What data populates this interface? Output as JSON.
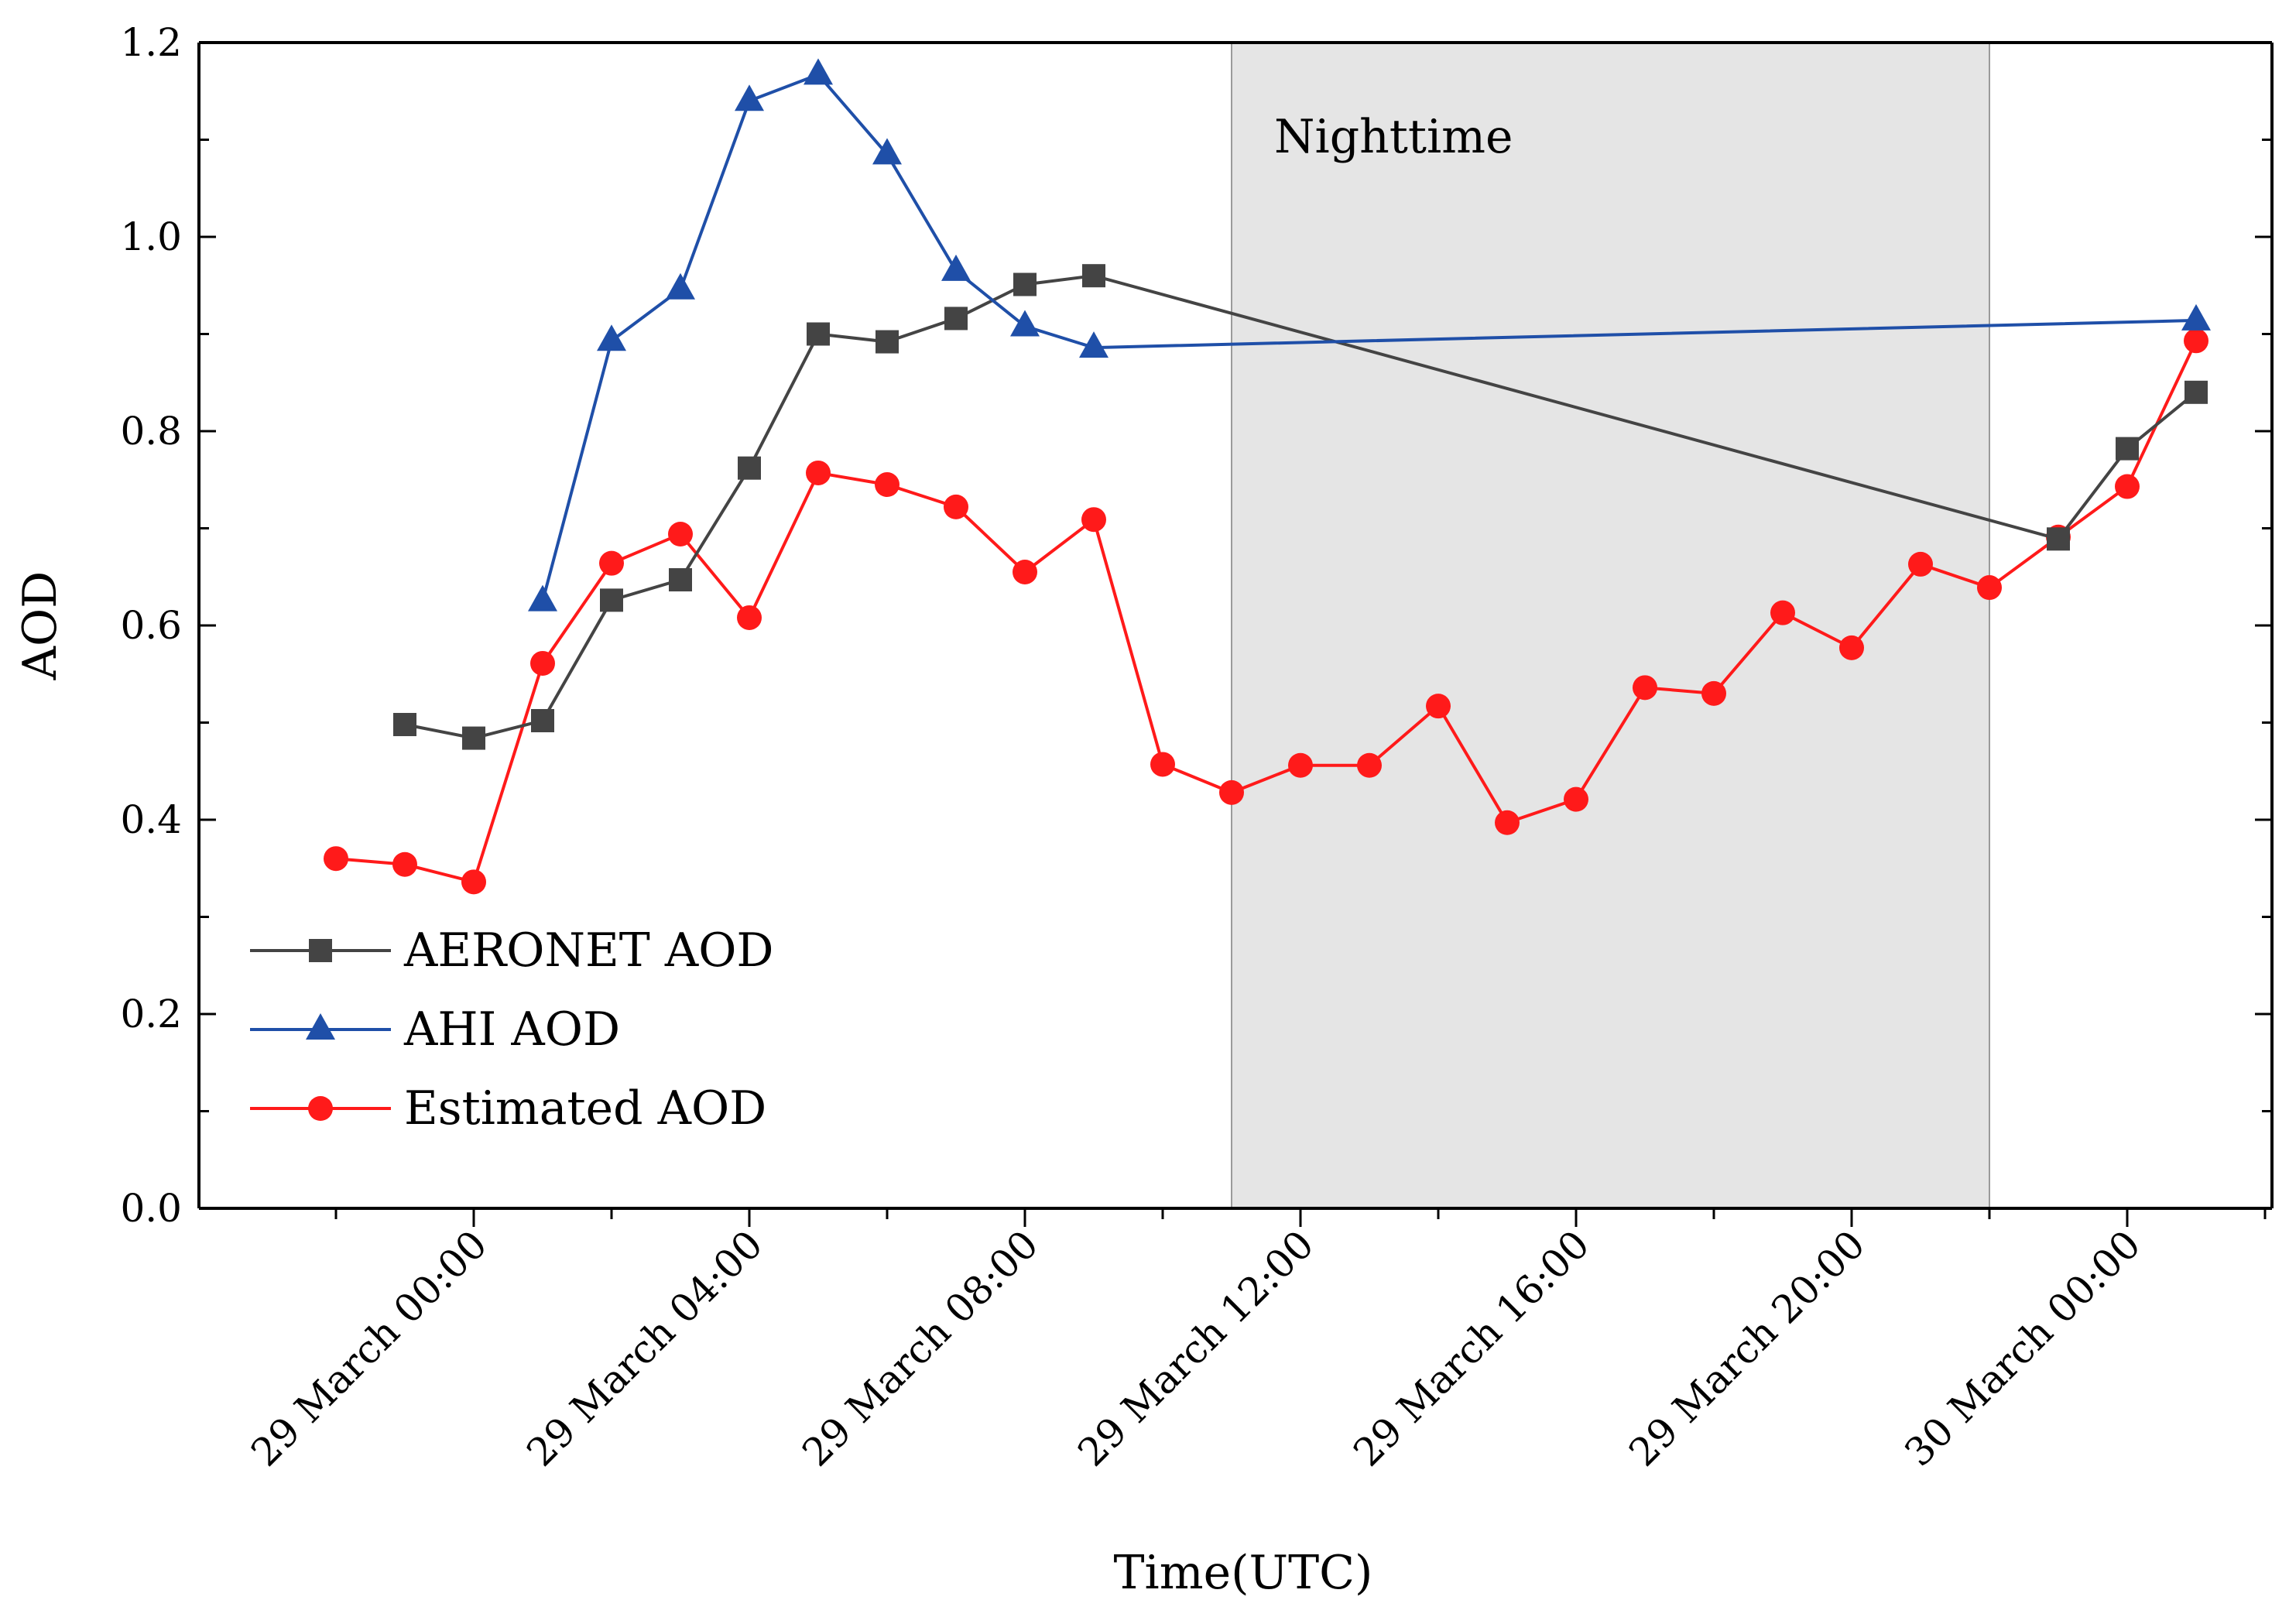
{
  "chart_data": {
    "type": "line",
    "title": "",
    "xlabel": "Time(UTC)",
    "ylabel": "AOD",
    "ylim": [
      0,
      1.2
    ],
    "xlim_hours": [
      -5,
      25
    ],
    "yticks": [
      "0.0",
      "0.2",
      "0.4",
      "0.6",
      "0.8",
      "1.0",
      "1.2"
    ],
    "xticks": [
      {
        "hour": 0,
        "label": "29 March 00:00"
      },
      {
        "hour": 4,
        "label": "29 March 04:00"
      },
      {
        "hour": 8,
        "label": "29 March 08:00"
      },
      {
        "hour": 12,
        "label": "29 March 12:00"
      },
      {
        "hour": 16,
        "label": "29 March 16:00"
      },
      {
        "hour": 20,
        "label": "29 March 20:00"
      },
      {
        "hour": 24,
        "label": "30 March 00:00"
      }
    ],
    "shaded_region": {
      "label": "Nighttime",
      "from_hour": 11,
      "to_hour": 22,
      "color": "#e5e5e5"
    },
    "legend_position": "lower-left",
    "series": [
      {
        "name": "AERONET AOD",
        "marker": "square",
        "color": "#444444",
        "points": [
          [
            -1,
            0.498
          ],
          [
            0,
            0.484
          ],
          [
            1,
            0.502
          ],
          [
            2,
            0.626
          ],
          [
            3,
            0.647
          ],
          [
            4,
            0.762
          ],
          [
            5,
            0.9
          ],
          [
            6,
            0.892
          ],
          [
            7,
            0.916
          ],
          [
            8,
            0.951
          ],
          [
            9,
            0.96
          ],
          [
            23,
            0.689
          ],
          [
            24,
            0.782
          ],
          [
            25,
            0.84
          ]
        ]
      },
      {
        "name": "AHI AOD",
        "marker": "triangle",
        "color": "#1f4fa8",
        "points": [
          [
            1,
            0.625
          ],
          [
            2,
            0.893
          ],
          [
            3,
            0.946
          ],
          [
            4,
            1.14
          ],
          [
            5,
            1.167
          ],
          [
            6,
            1.085
          ],
          [
            7,
            0.965
          ],
          [
            8,
            0.908
          ],
          [
            9,
            0.886
          ],
          [
            25,
            0.914
          ]
        ]
      },
      {
        "name": "Estimated AOD",
        "marker": "circle",
        "color": "#ff1a1a",
        "points": [
          [
            -2,
            0.36
          ],
          [
            -1,
            0.354
          ],
          [
            0,
            0.336
          ],
          [
            1,
            0.561
          ],
          [
            2,
            0.664
          ],
          [
            3,
            0.694
          ],
          [
            4,
            0.608
          ],
          [
            5,
            0.757
          ],
          [
            6,
            0.745
          ],
          [
            7,
            0.722
          ],
          [
            8,
            0.655
          ],
          [
            9,
            0.709
          ],
          [
            10,
            0.457
          ],
          [
            11,
            0.428
          ],
          [
            12,
            0.456
          ],
          [
            13,
            0.456
          ],
          [
            14,
            0.517
          ],
          [
            15,
            0.397
          ],
          [
            16,
            0.421
          ],
          [
            17,
            0.536
          ],
          [
            18,
            0.53
          ],
          [
            19,
            0.613
          ],
          [
            20,
            0.577
          ],
          [
            21,
            0.663
          ],
          [
            22,
            0.639
          ],
          [
            23,
            0.691
          ],
          [
            24,
            0.743
          ],
          [
            25,
            0.893
          ]
        ]
      }
    ]
  }
}
